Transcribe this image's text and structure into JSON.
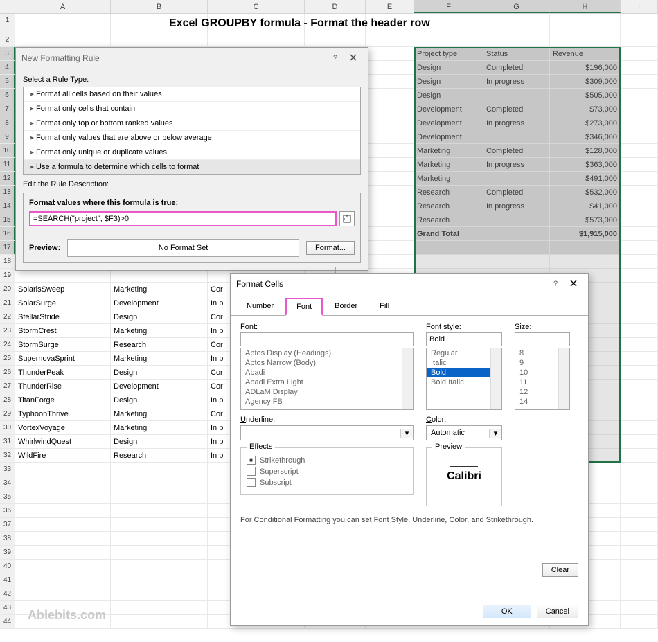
{
  "title": "Excel GROUPBY formula - Format the header row",
  "watermark": "Ablebits.com",
  "columns": [
    "A",
    "B",
    "C",
    "D",
    "E",
    "F",
    "G",
    "H",
    "I"
  ],
  "selectedCols": [
    "F",
    "G",
    "H"
  ],
  "rowNumbers": [
    1,
    2,
    3,
    4,
    5,
    6,
    7,
    8,
    9,
    10,
    11,
    12,
    13,
    14,
    15,
    16,
    17,
    18,
    19,
    20,
    21,
    22,
    23,
    24,
    25,
    26,
    27,
    28,
    29,
    30,
    31,
    32,
    33,
    34,
    35,
    36,
    37,
    38,
    39,
    40,
    41,
    42,
    43,
    44
  ],
  "selectedRowStart": 3,
  "selectedRowEnd": 32,
  "summary": {
    "headers": [
      "Project type",
      "Status",
      "Revenue"
    ],
    "rows": [
      [
        "Design",
        "Completed",
        "$196,000"
      ],
      [
        "Design",
        "In progress",
        "$309,000"
      ],
      [
        "Design",
        "",
        "$505,000"
      ],
      [
        "Development",
        "Completed",
        "$73,000"
      ],
      [
        "Development",
        "In progress",
        "$273,000"
      ],
      [
        "Development",
        "",
        "$346,000"
      ],
      [
        "Marketing",
        "Completed",
        "$128,000"
      ],
      [
        "Marketing",
        "In progress",
        "$363,000"
      ],
      [
        "Marketing",
        "",
        "$491,000"
      ],
      [
        "Research",
        "Completed",
        "$532,000"
      ],
      [
        "Research",
        "In progress",
        "$41,000"
      ],
      [
        "Research",
        "",
        "$573,000"
      ],
      [
        "Grand Total",
        "",
        "$1,915,000"
      ]
    ]
  },
  "bgData": [
    {
      "r": 20,
      "a": "SolarisSweep",
      "b": "Marketing",
      "c": "Cor"
    },
    {
      "r": 21,
      "a": "SolarSurge",
      "b": "Development",
      "c": "In p"
    },
    {
      "r": 22,
      "a": "StellarStride",
      "b": "Design",
      "c": "Cor"
    },
    {
      "r": 23,
      "a": "StormCrest",
      "b": "Marketing",
      "c": "In p"
    },
    {
      "r": 24,
      "a": "StormSurge",
      "b": "Research",
      "c": "Cor"
    },
    {
      "r": 25,
      "a": "SupernovaSprint",
      "b": "Marketing",
      "c": "In p"
    },
    {
      "r": 26,
      "a": "ThunderPeak",
      "b": "Design",
      "c": "Cor"
    },
    {
      "r": 27,
      "a": "ThunderRise",
      "b": "Development",
      "c": "Cor"
    },
    {
      "r": 28,
      "a": "TitanForge",
      "b": "Design",
      "c": "In p"
    },
    {
      "r": 29,
      "a": "TyphoonThrive",
      "b": "Marketing",
      "c": "Cor"
    },
    {
      "r": 30,
      "a": "VortexVoyage",
      "b": "Marketing",
      "c": "In p"
    },
    {
      "r": 31,
      "a": "WhirlwindQuest",
      "b": "Design",
      "c": "In p"
    },
    {
      "r": 32,
      "a": "WildFire",
      "b": "Research",
      "c": "In p"
    }
  ],
  "nfr": {
    "title": "New Formatting Rule",
    "selectLabel": "Select a Rule Type:",
    "rules": [
      "Format all cells based on their values",
      "Format only cells that contain",
      "Format only top or bottom ranked values",
      "Format only values that are above or below average",
      "Format only unique or duplicate values",
      "Use a formula to determine which cells to format"
    ],
    "selectedRule": 5,
    "editLabel": "Edit the Rule Description:",
    "formulaLabel": "Format values where this formula is true:",
    "formula": "=SEARCH(\"project\", $F3)>0",
    "previewLabel": "Preview:",
    "noFormat": "No Format Set",
    "formatBtn": "Format..."
  },
  "fc": {
    "title": "Format Cells",
    "tabs": [
      "Number",
      "Font",
      "Border",
      "Fill"
    ],
    "activeTab": 1,
    "fontLabel": "Font:",
    "fontList": [
      "Aptos Display (Headings)",
      "Aptos Narrow (Body)",
      "Abadi",
      "Abadi Extra Light",
      "ADLaM Display",
      "Agency FB"
    ],
    "fontStyleLabel": "Font style:",
    "fontStyleValue": "Bold",
    "fontStyleList": [
      "Regular",
      "Italic",
      "Bold",
      "Bold Italic"
    ],
    "fontStyleSelected": 2,
    "sizeLabel": "Size:",
    "sizeList": [
      "8",
      "9",
      "10",
      "11",
      "12",
      "14"
    ],
    "underlineLabel": "Underline:",
    "colorLabel": "Color:",
    "colorValue": "Automatic",
    "effectsLabel": "Effects",
    "strikethrough": "Strikethrough",
    "superscript": "Superscript",
    "subscript": "Subscript",
    "previewLabel": "Preview",
    "previewText": "Calibri",
    "note": "For Conditional Formatting you can set Font Style, Underline, Color, and Strikethrough.",
    "clear": "Clear",
    "ok": "OK",
    "cancel": "Cancel"
  }
}
